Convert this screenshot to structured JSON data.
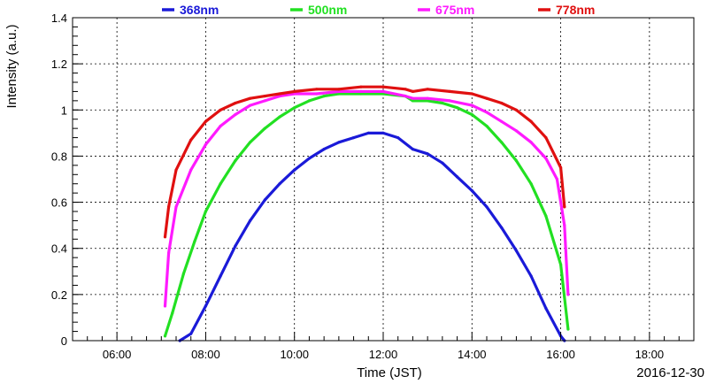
{
  "chart_data": {
    "type": "scatter",
    "title": "",
    "xlabel": "Time (JST)",
    "ylabel": "Intensity (a.u.)",
    "date_label": "2016-12-30",
    "xlim": [
      "05:00",
      "19:00"
    ],
    "ylim": [
      0,
      1.4
    ],
    "x_ticks": [
      "06:00",
      "08:00",
      "10:00",
      "12:00",
      "14:00",
      "16:00",
      "18:00"
    ],
    "y_ticks": [
      "0",
      "0.2",
      "0.4",
      "0.6",
      "0.8",
      "1",
      "1.2",
      "1.4"
    ],
    "grid": true,
    "legend_position": "top",
    "series": [
      {
        "name": "368nm",
        "color": "#1a1ad8",
        "points": [
          [
            "07:25",
            0.0
          ],
          [
            "07:40",
            0.03
          ],
          [
            "08:00",
            0.15
          ],
          [
            "08:20",
            0.28
          ],
          [
            "08:40",
            0.41
          ],
          [
            "09:00",
            0.52
          ],
          [
            "09:20",
            0.61
          ],
          [
            "09:40",
            0.68
          ],
          [
            "10:00",
            0.74
          ],
          [
            "10:20",
            0.79
          ],
          [
            "10:40",
            0.83
          ],
          [
            "11:00",
            0.86
          ],
          [
            "11:20",
            0.88
          ],
          [
            "11:40",
            0.9
          ],
          [
            "12:00",
            0.9
          ],
          [
            "12:20",
            0.88
          ],
          [
            "12:40",
            0.83
          ],
          [
            "13:00",
            0.81
          ],
          [
            "13:20",
            0.77
          ],
          [
            "13:40",
            0.71
          ],
          [
            "14:00",
            0.65
          ],
          [
            "14:20",
            0.58
          ],
          [
            "14:40",
            0.49
          ],
          [
            "15:00",
            0.39
          ],
          [
            "15:20",
            0.28
          ],
          [
            "15:40",
            0.14
          ],
          [
            "16:00",
            0.02
          ],
          [
            "16:05",
            0.0
          ]
        ]
      },
      {
        "name": "500nm",
        "color": "#22e022",
        "points": [
          [
            "07:05",
            0.02
          ],
          [
            "07:15",
            0.12
          ],
          [
            "07:30",
            0.29
          ],
          [
            "07:45",
            0.43
          ],
          [
            "08:00",
            0.56
          ],
          [
            "08:20",
            0.68
          ],
          [
            "08:40",
            0.78
          ],
          [
            "09:00",
            0.86
          ],
          [
            "09:20",
            0.92
          ],
          [
            "09:40",
            0.97
          ],
          [
            "10:00",
            1.01
          ],
          [
            "10:20",
            1.04
          ],
          [
            "10:40",
            1.06
          ],
          [
            "11:00",
            1.07
          ],
          [
            "11:30",
            1.07
          ],
          [
            "12:00",
            1.07
          ],
          [
            "12:30",
            1.06
          ],
          [
            "12:40",
            1.04
          ],
          [
            "13:00",
            1.04
          ],
          [
            "13:20",
            1.03
          ],
          [
            "13:40",
            1.01
          ],
          [
            "14:00",
            0.98
          ],
          [
            "14:20",
            0.93
          ],
          [
            "14:40",
            0.86
          ],
          [
            "15:00",
            0.78
          ],
          [
            "15:20",
            0.68
          ],
          [
            "15:40",
            0.54
          ],
          [
            "16:00",
            0.33
          ],
          [
            "16:10",
            0.05
          ]
        ]
      },
      {
        "name": "675nm",
        "color": "#ff1aff",
        "points": [
          [
            "07:05",
            0.15
          ],
          [
            "07:10",
            0.38
          ],
          [
            "07:20",
            0.58
          ],
          [
            "07:40",
            0.74
          ],
          [
            "08:00",
            0.85
          ],
          [
            "08:20",
            0.93
          ],
          [
            "08:40",
            0.98
          ],
          [
            "09:00",
            1.02
          ],
          [
            "09:20",
            1.04
          ],
          [
            "09:40",
            1.06
          ],
          [
            "10:00",
            1.07
          ],
          [
            "10:30",
            1.07
          ],
          [
            "11:00",
            1.08
          ],
          [
            "11:30",
            1.08
          ],
          [
            "12:00",
            1.08
          ],
          [
            "12:30",
            1.06
          ],
          [
            "12:40",
            1.05
          ],
          [
            "13:00",
            1.05
          ],
          [
            "13:30",
            1.04
          ],
          [
            "14:00",
            1.02
          ],
          [
            "14:20",
            0.99
          ],
          [
            "14:40",
            0.95
          ],
          [
            "15:00",
            0.91
          ],
          [
            "15:20",
            0.86
          ],
          [
            "15:40",
            0.79
          ],
          [
            "15:55",
            0.7
          ],
          [
            "16:05",
            0.5
          ],
          [
            "16:10",
            0.2
          ]
        ]
      },
      {
        "name": "778nm",
        "color": "#e01010",
        "points": [
          [
            "07:05",
            0.45
          ],
          [
            "07:10",
            0.58
          ],
          [
            "07:20",
            0.74
          ],
          [
            "07:40",
            0.87
          ],
          [
            "08:00",
            0.95
          ],
          [
            "08:20",
            1.0
          ],
          [
            "08:40",
            1.03
          ],
          [
            "09:00",
            1.05
          ],
          [
            "09:20",
            1.06
          ],
          [
            "09:40",
            1.07
          ],
          [
            "10:00",
            1.08
          ],
          [
            "10:30",
            1.09
          ],
          [
            "11:00",
            1.09
          ],
          [
            "11:30",
            1.1
          ],
          [
            "12:00",
            1.1
          ],
          [
            "12:30",
            1.09
          ],
          [
            "12:40",
            1.08
          ],
          [
            "13:00",
            1.09
          ],
          [
            "13:30",
            1.08
          ],
          [
            "14:00",
            1.07
          ],
          [
            "14:20",
            1.05
          ],
          [
            "14:40",
            1.03
          ],
          [
            "15:00",
            1.0
          ],
          [
            "15:20",
            0.95
          ],
          [
            "15:40",
            0.88
          ],
          [
            "16:00",
            0.75
          ],
          [
            "16:05",
            0.58
          ]
        ]
      }
    ]
  }
}
